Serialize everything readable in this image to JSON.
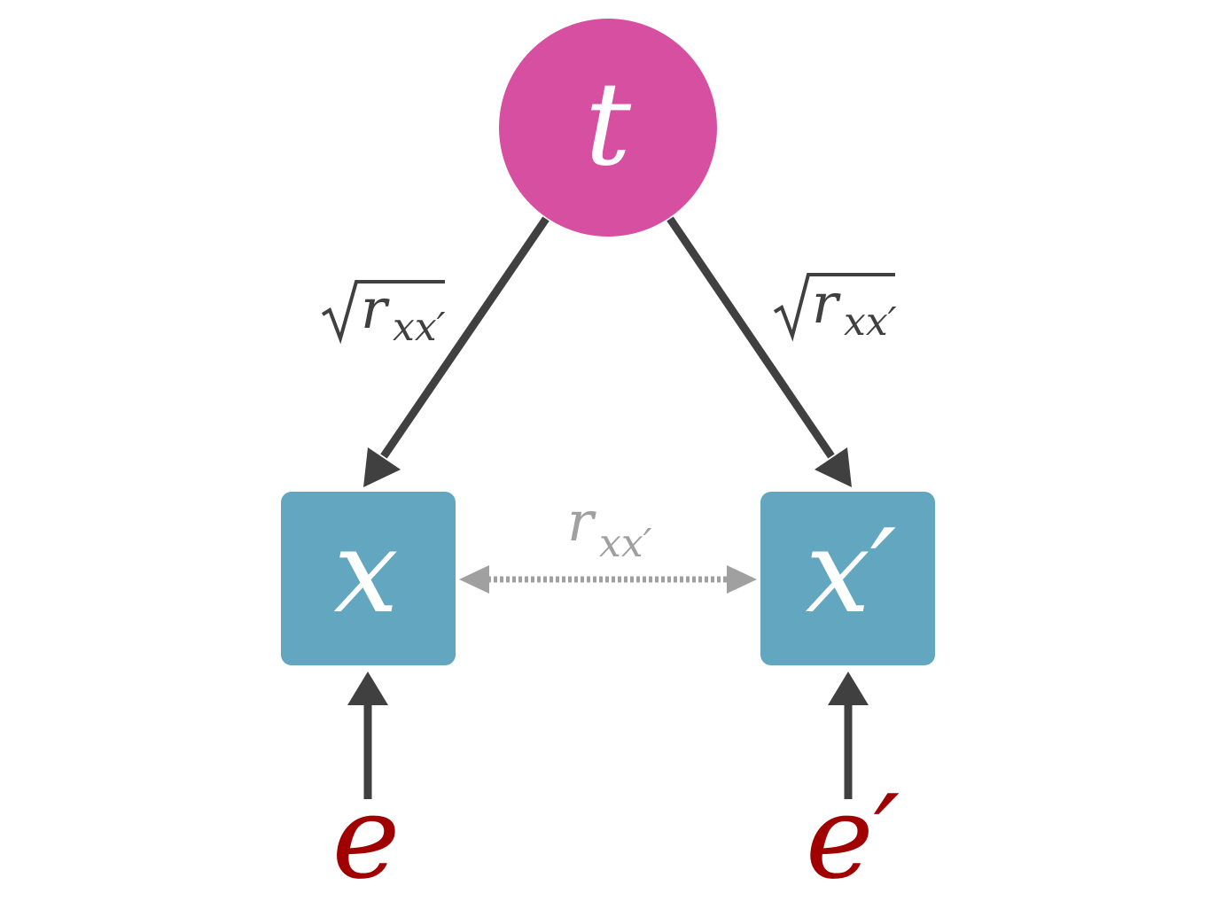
{
  "nodes": {
    "true_score": {
      "label": "t",
      "color": "#d64fa1"
    },
    "observed": {
      "label": "x",
      "color": "#62a7bf"
    },
    "observed_prime": {
      "label": "x′",
      "color": "#62a7bf"
    }
  },
  "errors": {
    "error": {
      "label": "e",
      "color": "#a00000"
    },
    "error_prime": {
      "label": "e′",
      "color": "#a00000"
    }
  },
  "paths": {
    "left_loading": {
      "base": "r",
      "subscript": "xx′"
    },
    "right_loading": {
      "base": "r",
      "subscript": "xx′"
    },
    "correlation": {
      "base": "r",
      "subscript": "xx′"
    }
  },
  "colors": {
    "arrow": "#404040",
    "correlation_arrow": "#a0a0a0"
  }
}
